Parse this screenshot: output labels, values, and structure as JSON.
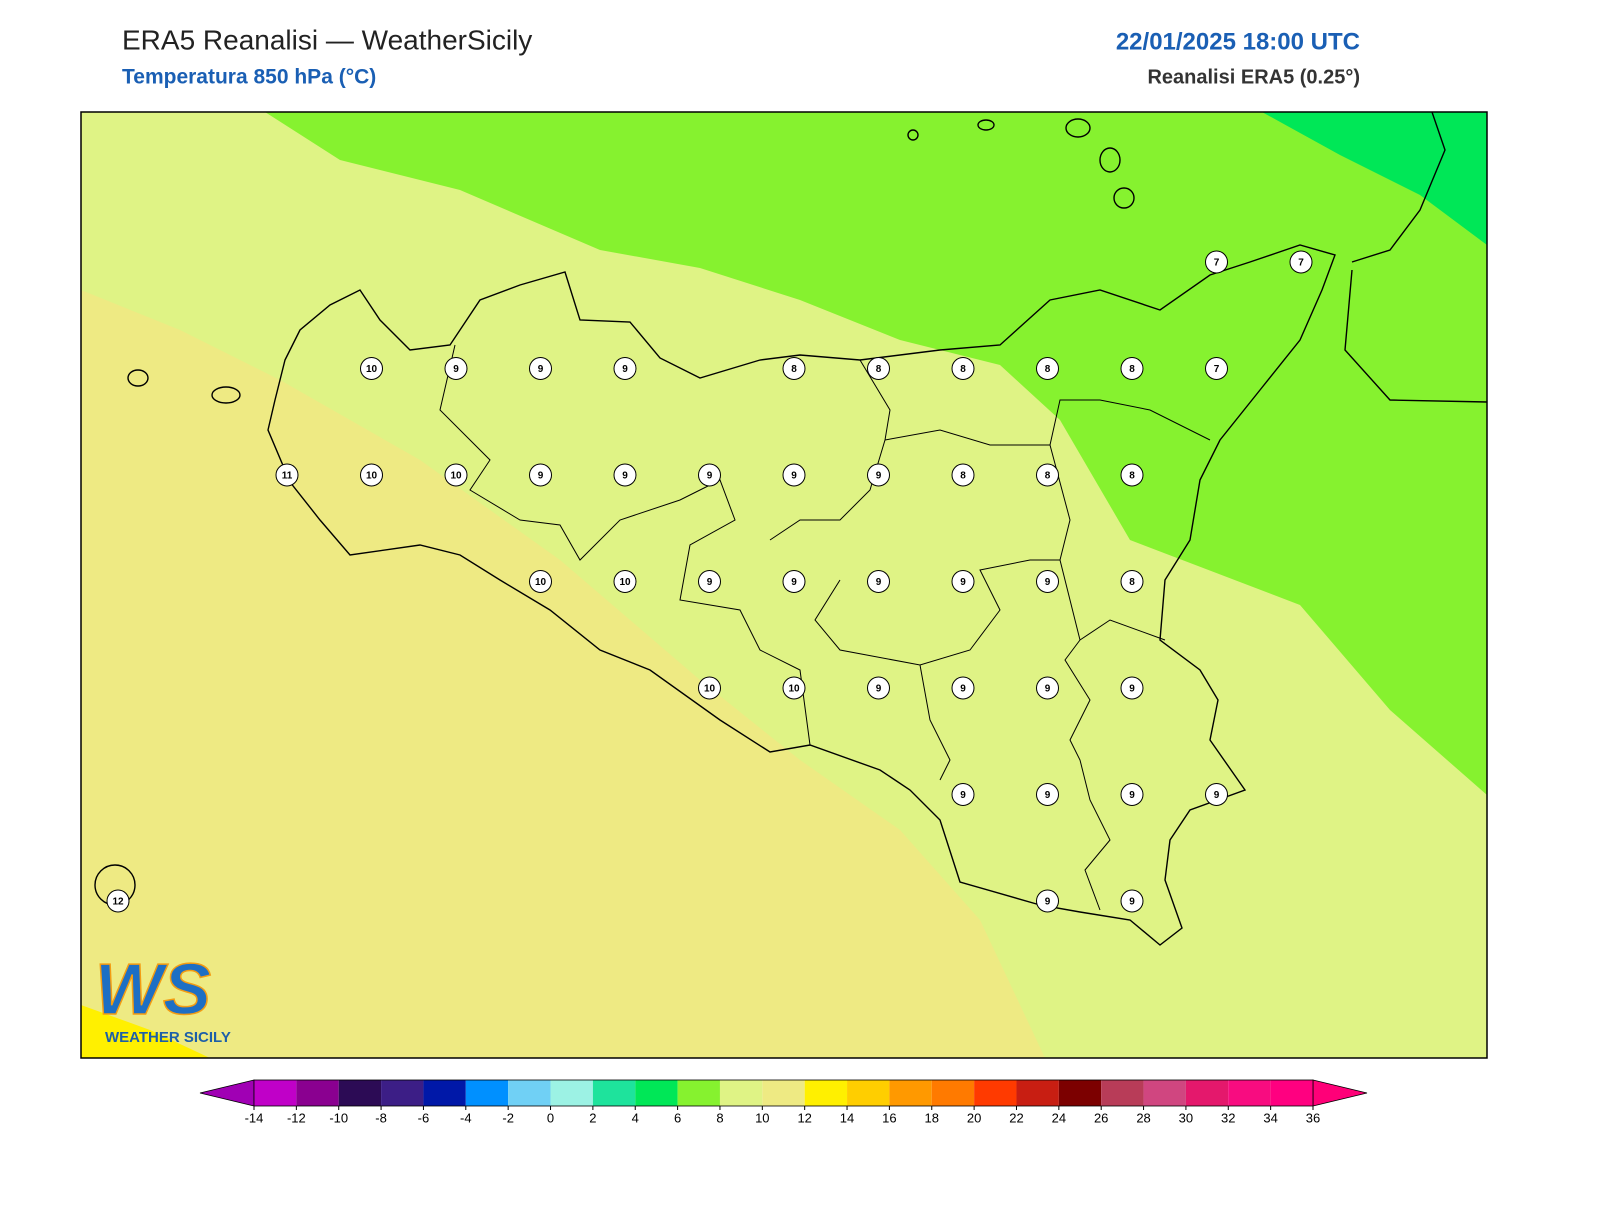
{
  "header": {
    "title": "ERA5 Reanalisi — WeatherSicily",
    "subtitle": "Temperatura 850 hPa (°C)",
    "datetime": "22/01/2025 18:00 UTC",
    "source": "Reanalisi ERA5 (0.25°)"
  },
  "map": {
    "grid": [
      [
        null,
        null,
        null,
        null,
        null,
        null,
        null,
        null,
        null,
        null,
        null,
        null,
        null,
        7,
        7
      ],
      [
        null,
        null,
        null,
        10,
        9,
        9,
        9,
        null,
        8,
        8,
        8,
        8,
        8,
        7,
        null
      ],
      [
        null,
        null,
        11,
        10,
        10,
        9,
        9,
        9,
        9,
        9,
        8,
        8,
        8,
        null,
        null
      ],
      [
        null,
        null,
        null,
        null,
        null,
        10,
        10,
        9,
        9,
        9,
        9,
        9,
        8,
        null,
        null
      ],
      [
        null,
        null,
        null,
        null,
        null,
        null,
        null,
        10,
        10,
        9,
        9,
        9,
        9,
        null,
        null
      ],
      [
        null,
        null,
        null,
        null,
        null,
        null,
        null,
        null,
        null,
        null,
        9,
        9,
        9,
        9,
        null
      ],
      [
        12,
        null,
        null,
        null,
        null,
        null,
        null,
        null,
        null,
        null,
        null,
        9,
        9,
        null,
        null
      ]
    ]
  },
  "logo": {
    "mark": "WS",
    "text": "WEATHER SICILY"
  },
  "colorbar": {
    "ticks": [
      -14,
      -12,
      -10,
      -8,
      -6,
      -4,
      -2,
      0,
      2,
      4,
      6,
      8,
      10,
      12,
      14,
      16,
      18,
      20,
      22,
      24,
      26,
      28,
      30,
      32,
      34,
      36
    ],
    "colors": [
      "#c000c8",
      "#8a0090",
      "#2c0b55",
      "#3c1e86",
      "#0018a8",
      "#0090ff",
      "#70d0f5",
      "#9cf2e4",
      "#1ee39c",
      "#00e757",
      "#86f22f",
      "#dff385",
      "#eeea83",
      "#fff000",
      "#ffce00",
      "#ff9900",
      "#ff7a00",
      "#ff3a00",
      "#c81e12",
      "#7c0000",
      "#b83c58",
      "#d04680",
      "#e4186c",
      "#f80c80",
      "#ff0080"
    ],
    "under_color": "#a000b4",
    "over_color": "#ff0078"
  }
}
